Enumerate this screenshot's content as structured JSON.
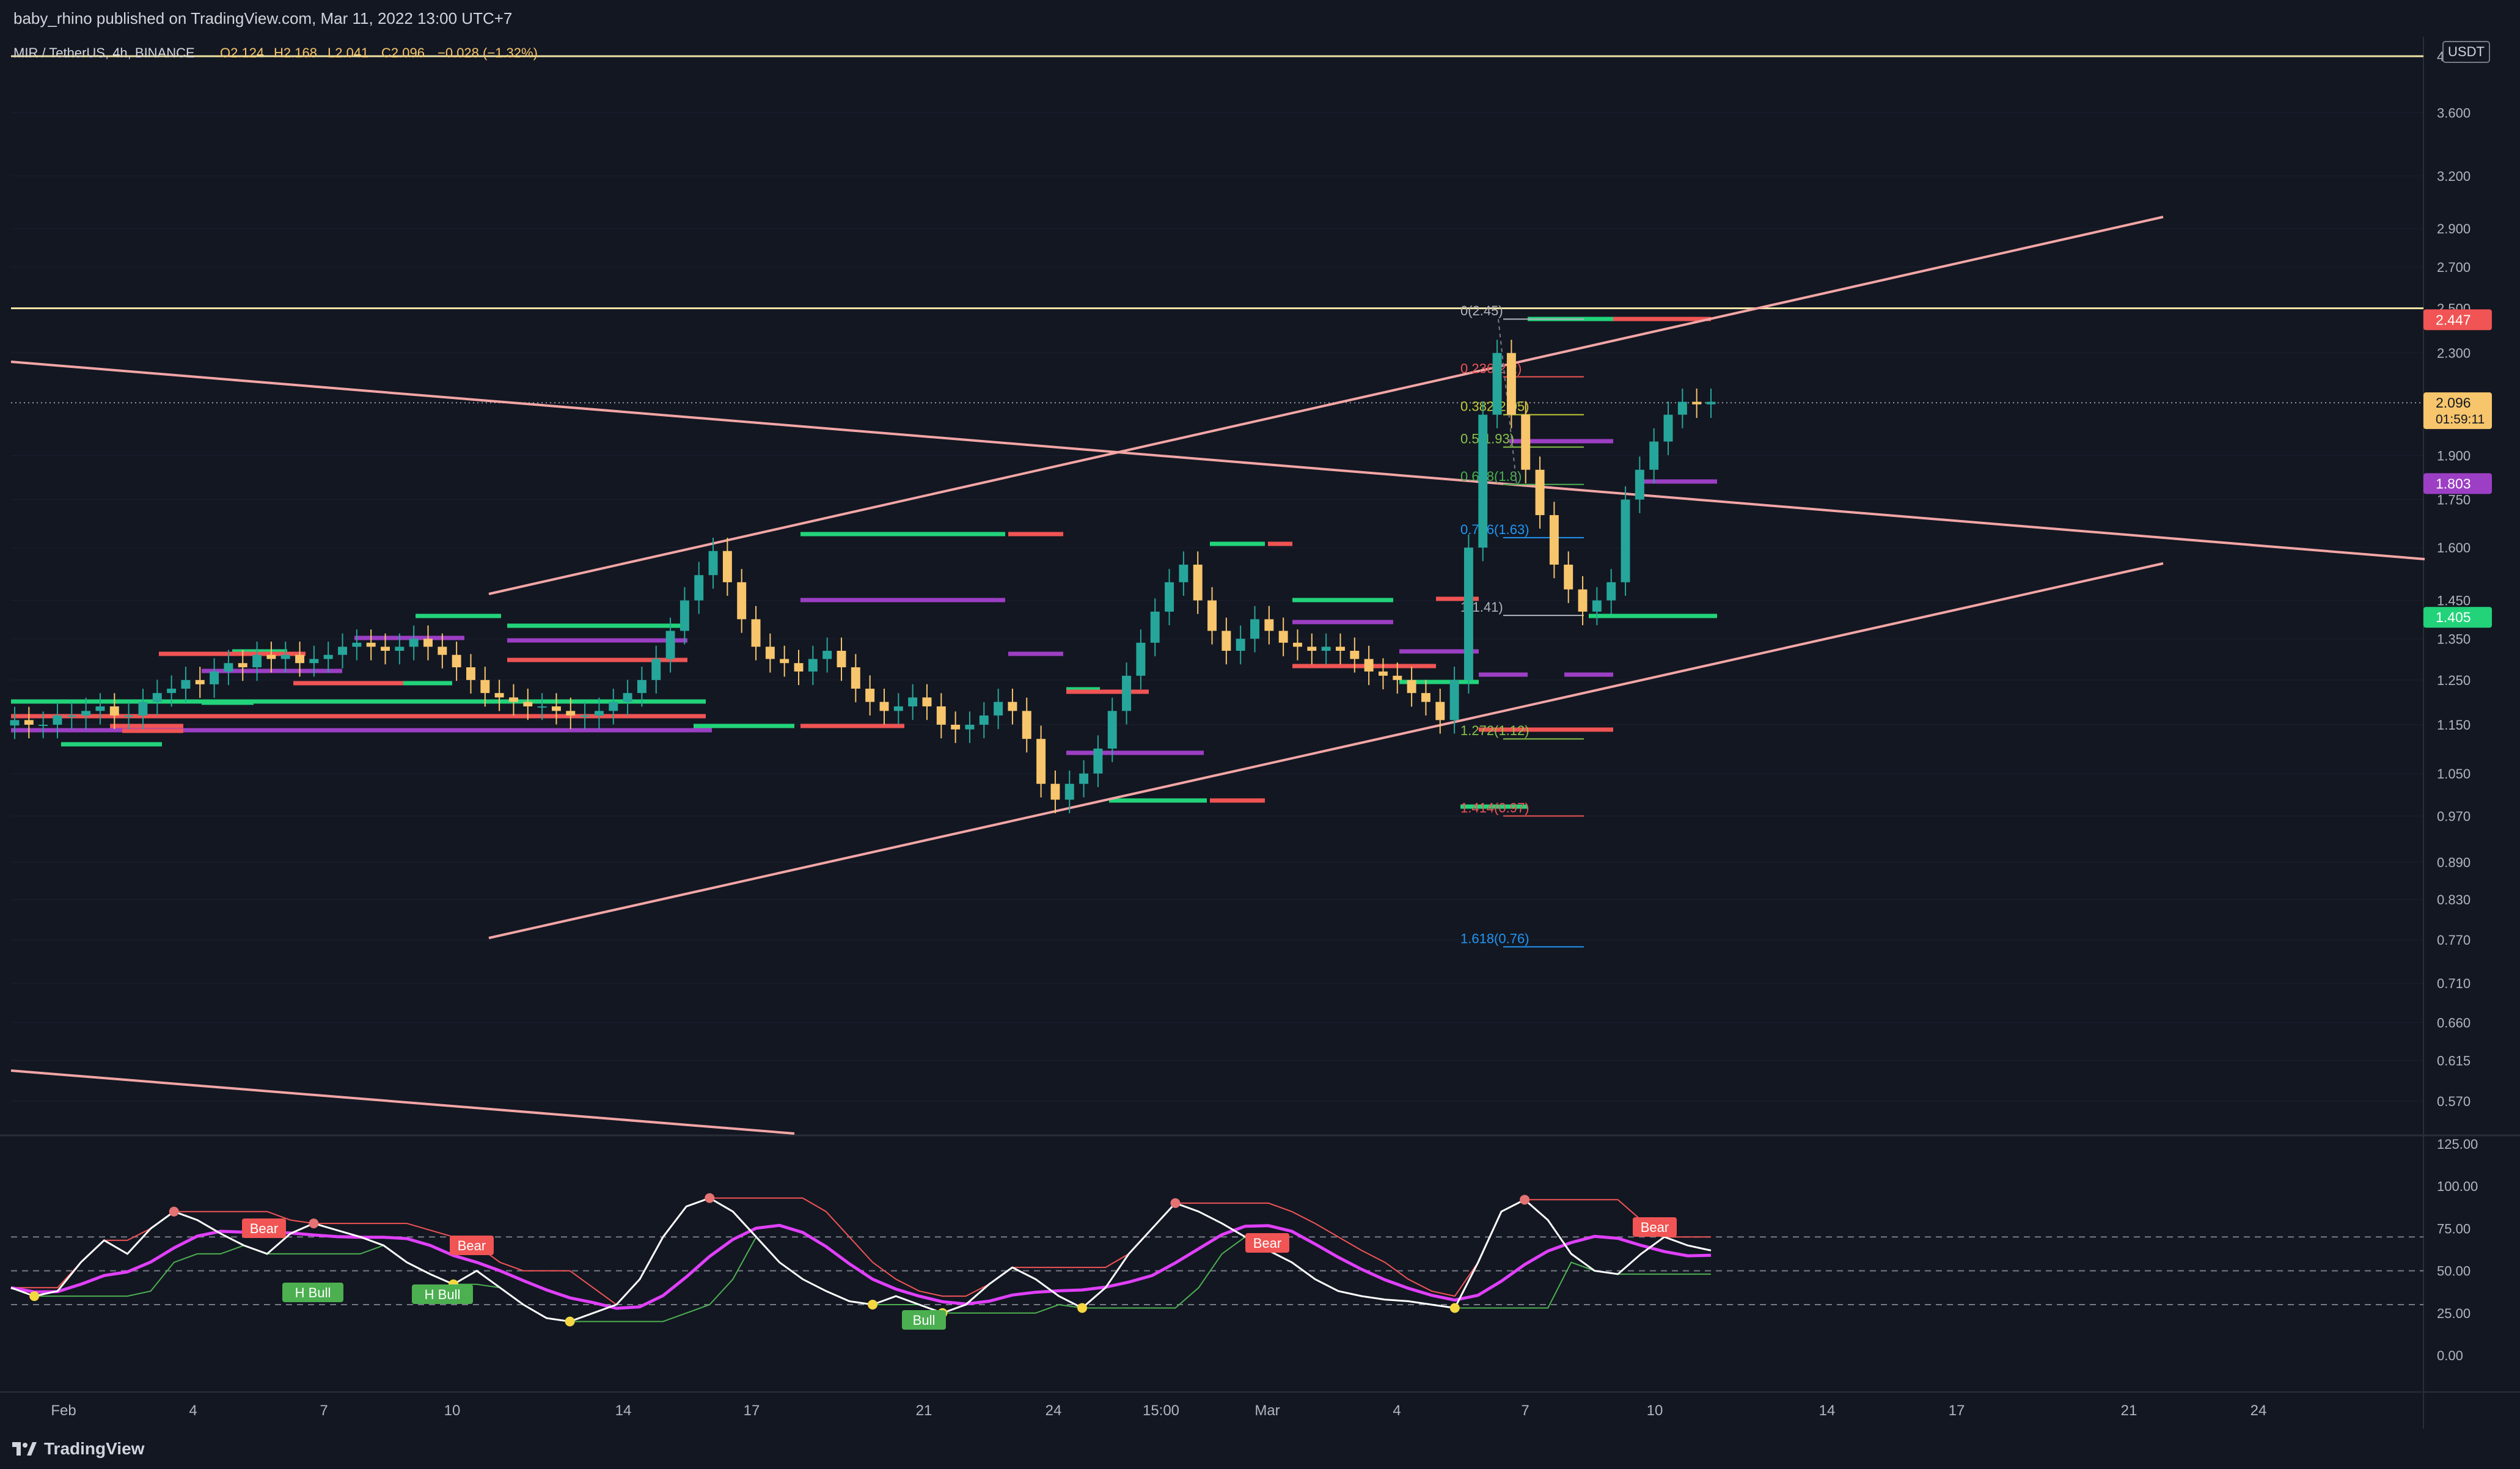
{
  "header": {
    "published": "baby_rhino published on TradingView.com, Mar 11, 2022 13:00 UTC+7"
  },
  "legend": {
    "symbol": "MIR / TetherUS, 4h, BINANCE",
    "open": "O2.124",
    "high": "H2.168",
    "low": "L2.041",
    "close": "C2.096",
    "change": "−0.028 (−1.32%)"
  },
  "currency": "USDT",
  "footer": {
    "brand": "TradingView"
  },
  "colors": {
    "background": "#131722",
    "up": "#26a69a",
    "down": "#f7c56b",
    "trendline": "#f4a6a6",
    "hline": "#f0e3a4",
    "green_level": "#22d37a",
    "red_level": "#f05454",
    "purple_level": "#9c3fc4",
    "rsi": "#ffffff",
    "rsi_ma": "#e040fb"
  },
  "chart_data": [
    {
      "type": "candlestick",
      "title": "MIR / TetherUS, 4h, BINANCE",
      "scale": "log",
      "y_ticks": [
        4,
        3.6,
        3.2,
        2.9,
        2.7,
        2.5,
        2.3,
        1.9,
        1.75,
        1.6,
        1.45,
        1.35,
        1.25,
        1.15,
        1.05,
        0.97,
        0.89,
        0.83,
        0.77,
        0.71,
        0.66,
        0.615,
        0.57
      ],
      "y_tick_labels": [
        "4",
        "3.600",
        "3.200",
        "2.900",
        "2.700",
        "2.500",
        "2.300",
        "1.900",
        "1.750",
        "1.600",
        "1.450",
        "1.350",
        "1.250",
        "1.150",
        "1.050",
        "0.970",
        "0.890",
        "0.830",
        "0.770",
        "0.710",
        "0.660",
        "0.615",
        "0.570"
      ],
      "x_tick_labels": [
        "Feb",
        "4",
        "7",
        "10",
        "14",
        "17",
        "21",
        "24",
        "15:00",
        "Mar",
        "4",
        "7",
        "10",
        "14",
        "17",
        "21",
        "24"
      ],
      "price_badges": [
        {
          "label": "2.447",
          "value": 2.447,
          "color": "#f05454"
        },
        {
          "label": "2.096",
          "value": 2.096,
          "color": "#f7c56b",
          "sub": "01:59:11"
        },
        {
          "label": "1.803",
          "value": 1.803,
          "color": "#9c3fc4"
        },
        {
          "label": "1.405",
          "value": 1.405,
          "color": "#22d37a"
        }
      ],
      "horizontal_lines": [
        4.0,
        2.5
      ],
      "fibonacci": [
        {
          "label": "0(2.45)",
          "value": 2.45,
          "color": "#b2b5be"
        },
        {
          "label": "0.236(2.2)",
          "value": 2.2,
          "color": "#f05454"
        },
        {
          "label": "0.382(2.05)",
          "value": 2.05,
          "color": "#c0ca33"
        },
        {
          "label": "0.5(1.93)",
          "value": 1.93,
          "color": "#8bc34a"
        },
        {
          "label": "0.618(1.8)",
          "value": 1.8,
          "color": "#4caf50"
        },
        {
          "label": "0.786(1.63)",
          "value": 1.63,
          "color": "#2196f3"
        },
        {
          "label": "1(1.41)",
          "value": 1.41,
          "color": "#b2b5be"
        },
        {
          "label": "1.272(1.12)",
          "value": 1.12,
          "color": "#8bc34a"
        },
        {
          "label": "1.414(0.97)",
          "value": 0.97,
          "color": "#f05454"
        },
        {
          "label": "1.618(0.76)",
          "value": 0.76,
          "color": "#2196f3"
        }
      ],
      "candles_close": [
        1.16,
        1.15,
        1.15,
        1.17,
        1.17,
        1.18,
        1.19,
        1.17,
        1.17,
        1.2,
        1.22,
        1.23,
        1.25,
        1.24,
        1.27,
        1.29,
        1.28,
        1.31,
        1.3,
        1.31,
        1.29,
        1.3,
        1.31,
        1.33,
        1.34,
        1.33,
        1.32,
        1.33,
        1.35,
        1.33,
        1.31,
        1.28,
        1.25,
        1.22,
        1.21,
        1.2,
        1.19,
        1.19,
        1.18,
        1.17,
        1.17,
        1.18,
        1.2,
        1.22,
        1.25,
        1.3,
        1.37,
        1.45,
        1.52,
        1.59,
        1.5,
        1.4,
        1.33,
        1.3,
        1.29,
        1.27,
        1.3,
        1.32,
        1.28,
        1.23,
        1.2,
        1.18,
        1.19,
        1.21,
        1.19,
        1.15,
        1.14,
        1.15,
        1.17,
        1.2,
        1.18,
        1.12,
        1.03,
        1.0,
        1.03,
        1.05,
        1.1,
        1.18,
        1.26,
        1.34,
        1.42,
        1.5,
        1.55,
        1.45,
        1.37,
        1.32,
        1.35,
        1.4,
        1.37,
        1.34,
        1.33,
        1.32,
        1.33,
        1.32,
        1.3,
        1.27,
        1.26,
        1.25,
        1.22,
        1.2,
        1.16,
        1.25,
        1.6,
        2.05,
        2.3,
        2.05,
        1.85,
        1.7,
        1.55,
        1.48,
        1.42,
        1.45,
        1.5,
        1.75,
        1.85,
        1.95,
        2.05,
        2.1,
        2.09,
        2.1
      ]
    },
    {
      "type": "line",
      "title": "RSI",
      "y_ticks": [
        125,
        100,
        75,
        50,
        25,
        0
      ],
      "y_tick_labels": [
        "125.00",
        "100.00",
        "75.00",
        "50.00",
        "25.00",
        "0.00"
      ],
      "bands": [
        70,
        50,
        30
      ],
      "signals": [
        {
          "label": "Bear",
          "kind": "bear"
        },
        {
          "label": "H Bull",
          "kind": "bull"
        },
        {
          "label": "Bear",
          "kind": "bear"
        },
        {
          "label": "H Bull",
          "kind": "bull"
        },
        {
          "label": "Bull",
          "kind": "bull"
        },
        {
          "label": "Bear",
          "kind": "bear"
        },
        {
          "label": "Bear",
          "kind": "bear"
        }
      ],
      "series": [
        {
          "name": "RSI",
          "values": [
            40,
            35,
            38,
            55,
            68,
            60,
            75,
            85,
            80,
            72,
            65,
            60,
            72,
            78,
            74,
            70,
            65,
            55,
            48,
            42,
            50,
            40,
            30,
            22,
            20,
            25,
            30,
            45,
            70,
            88,
            93,
            85,
            70,
            55,
            45,
            38,
            32,
            30,
            35,
            30,
            25,
            30,
            42,
            52,
            45,
            35,
            28,
            40,
            60,
            75,
            90,
            85,
            78,
            70,
            62,
            55,
            45,
            38,
            35,
            33,
            32,
            30,
            28,
            55,
            85,
            92,
            80,
            60,
            50,
            48,
            60,
            70,
            65,
            62
          ]
        }
      ]
    }
  ]
}
